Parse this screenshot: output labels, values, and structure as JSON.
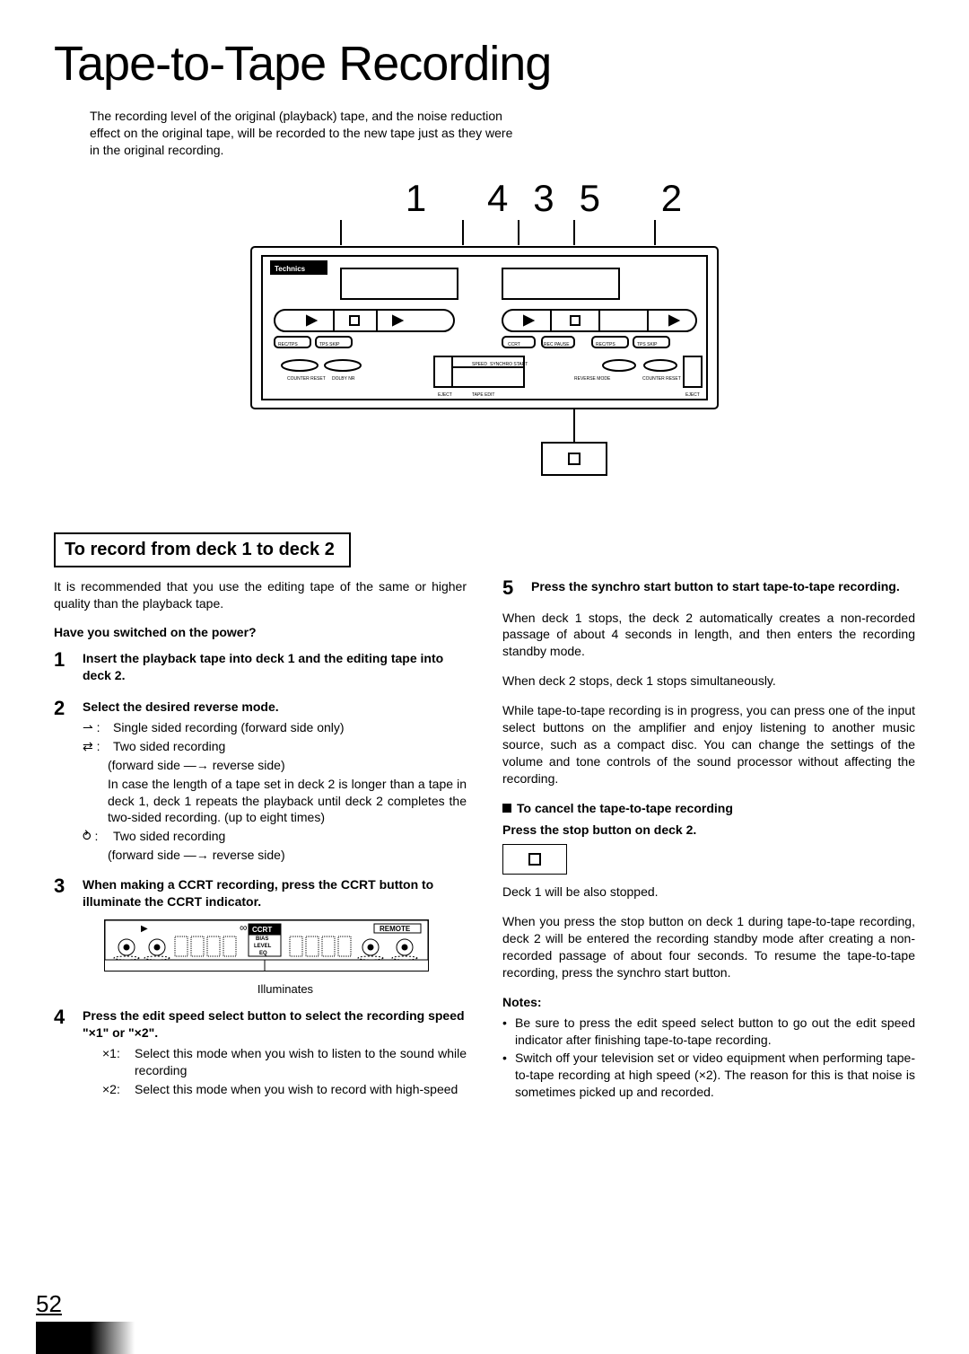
{
  "title": "Tape-to-Tape Recording",
  "intro": "The recording level of the original (playback) tape, and the noise reduction effect on the original tape, will be recorded to the new tape just as they were in the original recording.",
  "callouts": "1 435 2",
  "diagram": {
    "brand": "Technics",
    "labels": [
      "COUNTER RESET",
      "DOLBY NR",
      "EJECT",
      "SPEED",
      "SYNCHRO START",
      "TAPE EDIT",
      "REVERSE MODE",
      "COUNTER RESET",
      "EJECT",
      "REC/TPS",
      "TPS SKIP",
      "CCRT",
      "REC PAUSE",
      "REC/TPS",
      "TPS SKIP"
    ]
  },
  "boxed_heading": "To record from deck 1 to deck 2",
  "left": {
    "lead": "It is recommended that you use the editing tape of the same or higher quality than the playback tape.",
    "subq": "Have you switched on the power?",
    "step1": "Insert the playback tape into deck 1 and the editing tape into deck 2.",
    "step2_title": "Select the desired reverse mode.",
    "step2_modes": [
      {
        "icon": "⇀",
        "text": "Single sided recording (forward side only)"
      },
      {
        "icon": "⇄",
        "text": "Two sided recording"
      },
      {
        "icon": "",
        "text": "(forward side —→ reverse side)",
        "sub": true
      },
      {
        "icon": "",
        "text": "In case the length of a tape set in deck 2 is longer than a tape in deck 1, deck 1 repeats the playback until deck 2 completes the two-sided recording. (up to eight times)",
        "sub": true
      },
      {
        "icon": "⥁",
        "text": "Two sided recording"
      },
      {
        "icon": "",
        "text": "(forward side —→ reverse side)",
        "sub": true
      }
    ],
    "step3": "When making a CCRT recording, press the CCRT button to illuminate the CCRT indicator.",
    "lcd": {
      "badges": [
        "CCRT",
        "REMOTE"
      ],
      "center": [
        "BIAS",
        "LEVEL",
        "EQ"
      ],
      "icons": [
        "∞",
        "▶"
      ]
    },
    "illum": "Illuminates",
    "step4_title_a": "Press the edit speed select button to select the recording speed ",
    "step4_title_b": "\"×1\" or \"×2\".",
    "step4_items": [
      {
        "k": "×1:",
        "v": "Select this mode when you wish to listen to the sound while recording"
      },
      {
        "k": "×2:",
        "v": "Select this mode when you wish to record with high-speed"
      }
    ]
  },
  "right": {
    "step5": "Press the synchro start button to start tape-to-tape recording.",
    "p1": "When deck 1 stops, the deck 2 automatically creates a non-recorded passage of about 4 seconds in length, and then enters the recording standby mode.",
    "p2": "When deck 2 stops, deck 1 stops simultaneously.",
    "p3": "While tape-to-tape recording is in progress, you can press one of the input select buttons on the amplifier and enjoy listening to another music source, such as a compact disc. You can change the settings of the volume and tone controls of the sound processor without affecting the recording.",
    "cancel_h": "To cancel the tape-to-tape recording",
    "press_stop": "Press the stop button on deck 2.",
    "after1": "Deck 1 will be also stopped.",
    "after2": "When you press the stop button on deck 1 during tape-to-tape recording, deck 2 will be entered the recording standby mode after creating a non-recorded passage of about four seconds. To resume the tape-to-tape recording, press the synchro start button.",
    "notes_h": "Notes:",
    "notes": [
      "Be sure to press the edit speed select button to go out the edit speed indicator after finishing tape-to-tape recording.",
      "Switch off your television set or video equipment when performing tape-to-tape recording at high speed (×2). The reason for this is that noise is sometimes picked up and recorded."
    ]
  },
  "page_number": "52",
  "colors": {
    "fg": "#000000",
    "bg": "#ffffff"
  }
}
